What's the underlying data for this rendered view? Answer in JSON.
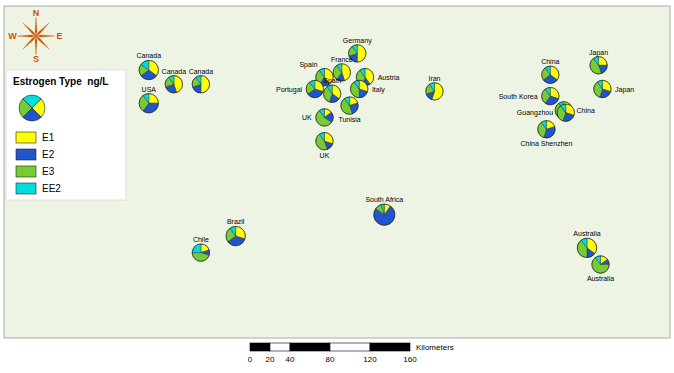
{
  "chart_data": {
    "type": "pie_map",
    "categories": [
      "Canada",
      "Canada",
      "Canada",
      "USA",
      "Chile",
      "Brazil",
      "Spain",
      "France",
      "Germany",
      "Austria",
      "Portugal",
      "Spain",
      "Italy",
      "Tunisia",
      "UK",
      "UK",
      "South Africa",
      "Iran",
      "China",
      "South Korea",
      "China",
      "China Shenzhen",
      "Guangzhou",
      "Japan",
      "Japan",
      "Australia",
      "Australia"
    ],
    "lon": [
      -95,
      -82,
      -68,
      -95,
      -68,
      -50,
      -4,
      5,
      13,
      17,
      -9,
      0,
      14,
      9,
      -4,
      -4,
      27,
      53,
      113,
      113,
      120,
      111,
      121,
      138,
      140,
      132,
      139
    ],
    "lat": [
      55,
      49,
      49,
      41,
      -22,
      -15,
      52,
      54,
      62,
      52,
      47,
      45,
      47,
      40,
      35,
      25,
      -6,
      46,
      53,
      44,
      38,
      30,
      37,
      57,
      47,
      -20,
      -27
    ],
    "r": [
      5.0,
      4.5,
      4.5,
      5.0,
      4.5,
      5.0,
      4.5,
      4.5,
      4.5,
      4.5,
      4.5,
      4.5,
      4.5,
      4.5,
      4.5,
      4.5,
      5.5,
      4.5,
      4.5,
      4.5,
      4.5,
      4.5,
      4.5,
      4.5,
      4.5,
      5.0,
      4.5
    ],
    "series": [
      {
        "name": "E1",
        "color": "#ffff00",
        "values": [
          0.35,
          0.45,
          0.5,
          0.25,
          0.2,
          0.3,
          0.4,
          0.45,
          0.5,
          0.4,
          0.3,
          0.35,
          0.3,
          0.2,
          0.15,
          0.3,
          0.1,
          0.55,
          0.35,
          0.3,
          0.25,
          0.2,
          0.3,
          0.25,
          0.3,
          0.35,
          0.15
        ]
      },
      {
        "name": "E2",
        "color": "#2255cc",
        "values": [
          0.3,
          0.25,
          0.2,
          0.35,
          0.1,
          0.35,
          0.2,
          0.15,
          0.2,
          0.15,
          0.35,
          0.2,
          0.2,
          0.25,
          0.2,
          0.15,
          0.75,
          0.15,
          0.3,
          0.3,
          0.3,
          0.35,
          0.25,
          0.2,
          0.25,
          0.15,
          0.1
        ]
      },
      {
        "name": "E3",
        "color": "#77cc33",
        "values": [
          0.2,
          0.2,
          0.2,
          0.3,
          0.45,
          0.25,
          0.3,
          0.3,
          0.2,
          0.35,
          0.25,
          0.35,
          0.4,
          0.45,
          0.55,
          0.45,
          0.1,
          0.2,
          0.25,
          0.3,
          0.35,
          0.35,
          0.35,
          0.45,
          0.35,
          0.4,
          0.65
        ]
      },
      {
        "name": "EE2",
        "color": "#00dddd",
        "values": [
          0.15,
          0.1,
          0.1,
          0.1,
          0.25,
          0.1,
          0.1,
          0.1,
          0.1,
          0.1,
          0.1,
          0.1,
          0.1,
          0.1,
          0.1,
          0.1,
          0.05,
          0.1,
          0.1,
          0.1,
          0.1,
          0.1,
          0.1,
          0.1,
          0.1,
          0.1,
          0.1
        ]
      }
    ],
    "xlim": [
      -170,
      175
    ],
    "ylim": [
      -58,
      82
    ],
    "tick_labels": false,
    "legend": "upper left",
    "legend_title": "Estrogen Type  ng/L",
    "scale_ticks": [
      0,
      20,
      40,
      80,
      120,
      160
    ],
    "scale_label": "Kilometers",
    "compass_labels": [
      "N",
      "E",
      "S",
      "W"
    ]
  }
}
